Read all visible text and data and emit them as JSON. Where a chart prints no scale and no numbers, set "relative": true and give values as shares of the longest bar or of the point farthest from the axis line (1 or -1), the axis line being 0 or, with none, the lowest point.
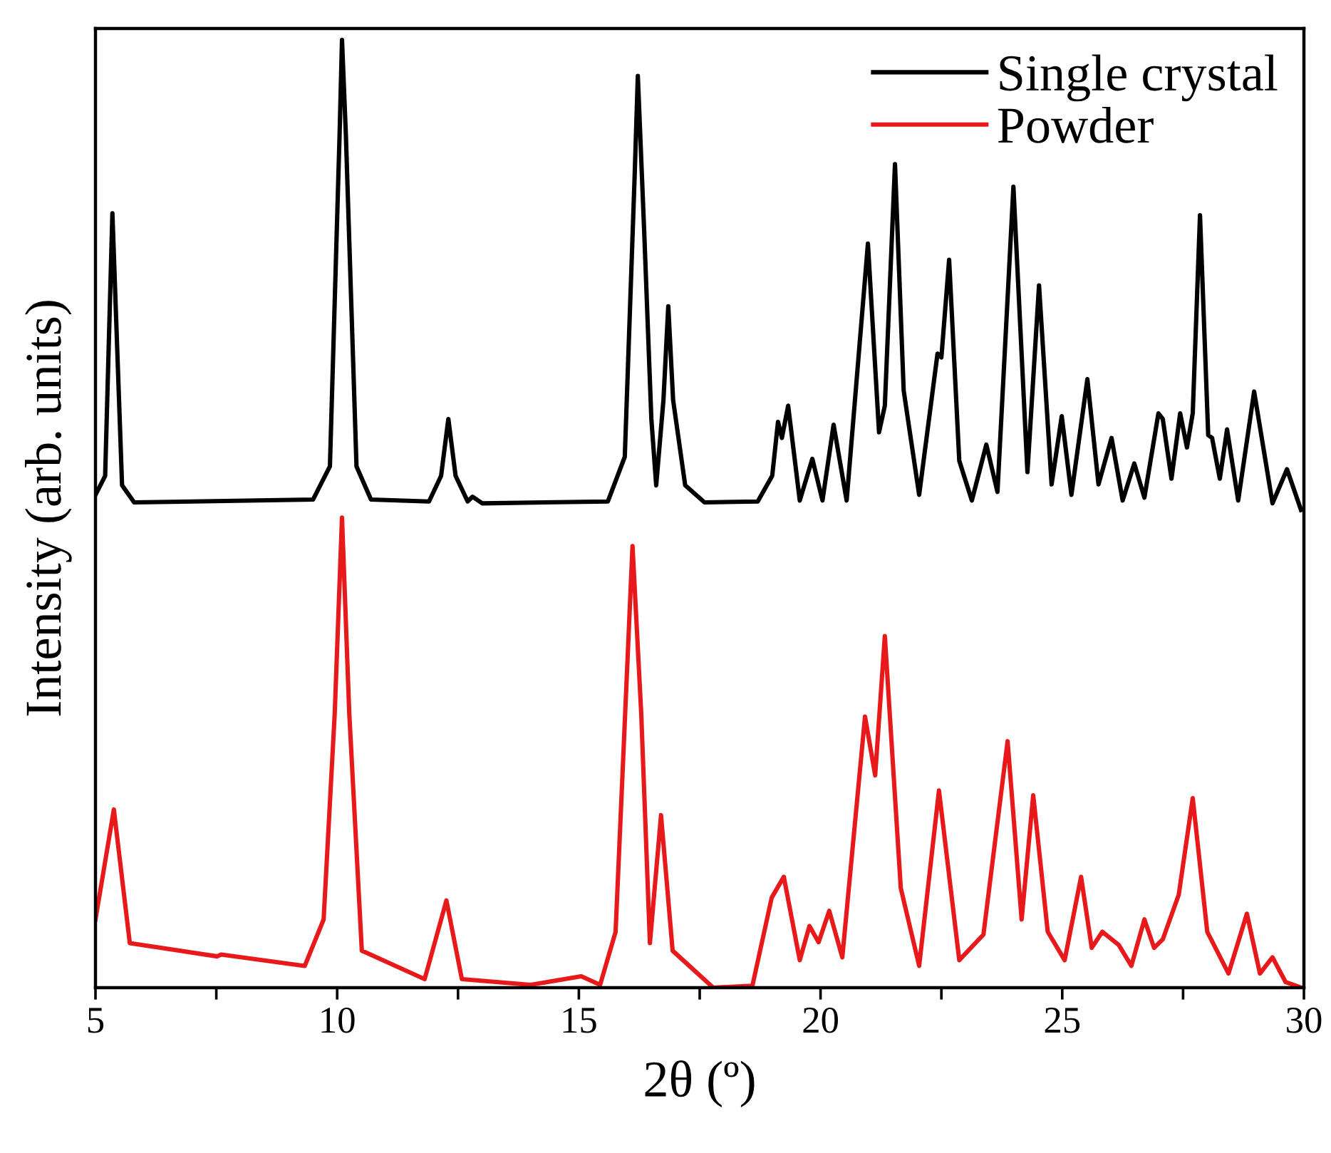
{
  "chart_data": {
    "type": "line",
    "relative": true,
    "xlabel": "2θ (º)",
    "ylabel": "Intensity (arb. units)",
    "legend": "top right",
    "grid": false,
    "xlim": [
      5,
      30
    ],
    "xticks": [
      5,
      {
        "value": 7.5,
        "label": null
      },
      10,
      {
        "value": 12.5,
        "label": null
      },
      15,
      {
        "value": 17.5,
        "label": null
      },
      20,
      {
        "value": 22.5,
        "label": null
      },
      25,
      {
        "value": 27.5,
        "label": null
      },
      30
    ],
    "series": [
      {
        "name": "Single crystal",
        "color": "#000000",
        "x": [
          5.0,
          5.2,
          5.35,
          5.55,
          5.8,
          9.5,
          9.85,
          10.05,
          10.1,
          10.18,
          10.4,
          10.7,
          11.9,
          12.15,
          12.3,
          12.45,
          12.7,
          12.8,
          13.0,
          15.6,
          15.95,
          16.15,
          16.22,
          16.35,
          16.5,
          16.6,
          16.75,
          16.85,
          16.95,
          17.2,
          17.6,
          18.7,
          19.0,
          19.12,
          19.2,
          19.33,
          19.57,
          19.83,
          20.04,
          20.27,
          20.54,
          20.98,
          21.21,
          21.33,
          21.54,
          21.72,
          22.04,
          22.42,
          22.5,
          22.66,
          22.87,
          23.13,
          23.43,
          23.66,
          23.99,
          24.28,
          24.52,
          24.78,
          24.99,
          25.19,
          25.52,
          25.75,
          26.02,
          26.25,
          26.49,
          26.7,
          26.99,
          27.08,
          27.26,
          27.44,
          27.58,
          27.7,
          27.85,
          28.02,
          28.1,
          28.26,
          28.41,
          28.64,
          28.97,
          29.35,
          29.65,
          29.94
        ],
        "values": [
          0.52,
          0.54,
          0.817,
          0.53,
          0.512,
          0.515,
          0.55,
          0.9,
          1.0,
          0.9,
          0.55,
          0.515,
          0.513,
          0.54,
          0.6,
          0.54,
          0.513,
          0.518,
          0.511,
          0.513,
          0.56,
          0.85,
          0.962,
          0.8,
          0.6,
          0.53,
          0.62,
          0.719,
          0.62,
          0.53,
          0.512,
          0.513,
          0.54,
          0.597,
          0.58,
          0.614,
          0.514,
          0.558,
          0.514,
          0.594,
          0.514,
          0.785,
          0.586,
          0.614,
          0.869,
          0.63,
          0.52,
          0.669,
          0.665,
          0.768,
          0.556,
          0.514,
          0.573,
          0.523,
          0.845,
          0.544,
          0.741,
          0.531,
          0.603,
          0.52,
          0.642,
          0.531,
          0.58,
          0.514,
          0.553,
          0.517,
          0.606,
          0.6,
          0.537,
          0.606,
          0.57,
          0.606,
          0.815,
          0.583,
          0.58,
          0.537,
          0.589,
          0.514,
          0.629,
          0.511,
          0.547,
          0.504
        ]
      },
      {
        "name": "Powder",
        "color": "#e8191b",
        "x": [
          5.0,
          5.38,
          5.71,
          7.52,
          7.6,
          9.33,
          9.72,
          9.95,
          10.1,
          10.25,
          10.51,
          11.81,
          12.26,
          12.58,
          14.0,
          15.05,
          15.44,
          15.76,
          16.11,
          16.29,
          16.47,
          16.7,
          16.94,
          17.78,
          18.59,
          18.99,
          19.24,
          19.57,
          19.77,
          19.96,
          20.18,
          20.45,
          20.92,
          21.13,
          21.33,
          21.66,
          22.04,
          22.45,
          22.87,
          23.37,
          23.87,
          24.16,
          24.4,
          24.7,
          25.05,
          25.39,
          25.61,
          25.83,
          26.17,
          26.43,
          26.7,
          26.9,
          27.08,
          27.41,
          27.7,
          28.0,
          28.44,
          28.82,
          29.09,
          29.35,
          29.62,
          29.95
        ],
        "values": [
          0.072,
          0.188,
          0.047,
          0.033,
          0.035,
          0.023,
          0.072,
          0.29,
          0.496,
          0.29,
          0.039,
          0.009,
          0.092,
          0.009,
          0.003,
          0.012,
          0.003,
          0.059,
          0.466,
          0.29,
          0.047,
          0.182,
          0.039,
          0.0,
          0.002,
          0.095,
          0.117,
          0.029,
          0.065,
          0.048,
          0.081,
          0.032,
          0.286,
          0.224,
          0.371,
          0.105,
          0.023,
          0.208,
          0.029,
          0.056,
          0.26,
          0.072,
          0.203,
          0.059,
          0.029,
          0.117,
          0.042,
          0.059,
          0.045,
          0.023,
          0.072,
          0.042,
          0.051,
          0.098,
          0.2,
          0.059,
          0.015,
          0.078,
          0.015,
          0.032,
          0.006,
          0.0
        ]
      }
    ]
  }
}
